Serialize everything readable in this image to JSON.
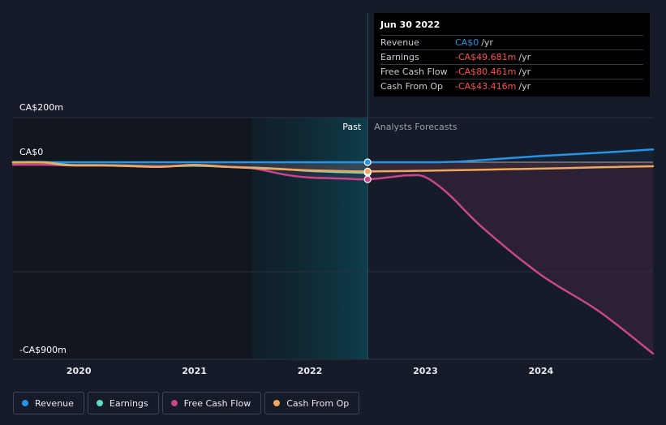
{
  "tooltip": {
    "date": "Jun 30 2022",
    "rows": [
      {
        "label": "Revenue",
        "value": "CA$0",
        "unit": "/yr",
        "color": "#2394e6"
      },
      {
        "label": "Earnings",
        "value": "-CA$49.681m",
        "unit": "/yr",
        "color": "#ff4d4d"
      },
      {
        "label": "Free Cash Flow",
        "value": "-CA$80.461m",
        "unit": "/yr",
        "color": "#ff4d4d"
      },
      {
        "label": "Cash From Op",
        "value": "-CA$43.416m",
        "unit": "/yr",
        "color": "#ff4d4d"
      }
    ]
  },
  "legend": [
    {
      "label": "Revenue",
      "color": "#2394e6"
    },
    {
      "label": "Earnings",
      "color": "#5ee0c0"
    },
    {
      "label": "Free Cash Flow",
      "color": "#c7468c"
    },
    {
      "label": "Cash From Op",
      "color": "#f0a860"
    }
  ],
  "chart_data": {
    "type": "line",
    "title": "",
    "y_ticks": [
      "CA$200m",
      "CA$0",
      "-CA$900m"
    ],
    "y_tick_values": [
      200,
      0,
      -900
    ],
    "ylim": [
      -900,
      200
    ],
    "xlim": [
      2019.43,
      2024.97
    ],
    "x_ticks": [
      2020,
      2021,
      2022,
      2023,
      2024
    ],
    "x_tick_labels": [
      "2020",
      "2021",
      "2022",
      "2023",
      "2024"
    ],
    "past_label": "Past",
    "forecast_label": "Analysts Forecasts",
    "highlight_range": [
      2021.5,
      2022.5
    ],
    "cursor_x": 2022.5,
    "series": [
      {
        "name": "Revenue",
        "color": "#2394e6",
        "points": [
          [
            2019.43,
            0
          ],
          [
            2020,
            0
          ],
          [
            2021,
            0
          ],
          [
            2022,
            0
          ],
          [
            2022.5,
            0
          ],
          [
            2023,
            0
          ],
          [
            2023.3,
            3
          ],
          [
            2023.6,
            14
          ],
          [
            2024,
            28
          ],
          [
            2024.5,
            42
          ],
          [
            2024.97,
            57
          ]
        ]
      },
      {
        "name": "Earnings",
        "color": "#5ee0c0",
        "points": [
          [
            2019.43,
            0
          ],
          [
            2019.7,
            0
          ],
          [
            2019.9,
            -12
          ],
          [
            2020.3,
            -14
          ],
          [
            2020.7,
            -19
          ],
          [
            2021,
            -16
          ],
          [
            2021.3,
            -22
          ],
          [
            2021.5,
            -25
          ],
          [
            2021.8,
            -33
          ],
          [
            2022,
            -41
          ],
          [
            2022.3,
            -47
          ],
          [
            2022.5,
            -49.7
          ]
        ]
      },
      {
        "name": "Free Cash Flow",
        "color": "#c7468c",
        "points": [
          [
            2019.43,
            -12
          ],
          [
            2019.7,
            -12
          ],
          [
            2019.9,
            -14
          ],
          [
            2020.3,
            -16
          ],
          [
            2020.7,
            -20
          ],
          [
            2021,
            -13
          ],
          [
            2021.3,
            -22
          ],
          [
            2021.5,
            -28
          ],
          [
            2021.8,
            -60
          ],
          [
            2022,
            -72
          ],
          [
            2022.3,
            -77
          ],
          [
            2022.5,
            -80.5
          ],
          [
            2022.7,
            -70
          ],
          [
            2022.85,
            -62
          ],
          [
            2023,
            -70
          ],
          [
            2023.2,
            -150
          ],
          [
            2023.5,
            -310
          ],
          [
            2024,
            -530
          ],
          [
            2024.5,
            -700
          ],
          [
            2024.97,
            -900
          ]
        ]
      },
      {
        "name": "Cash From Op",
        "color": "#f0a860",
        "points": [
          [
            2019.43,
            -2
          ],
          [
            2019.7,
            -2
          ],
          [
            2019.9,
            -14
          ],
          [
            2020.3,
            -16
          ],
          [
            2020.7,
            -22
          ],
          [
            2021,
            -13
          ],
          [
            2021.3,
            -22
          ],
          [
            2021.5,
            -27
          ],
          [
            2021.8,
            -34
          ],
          [
            2022,
            -38
          ],
          [
            2022.3,
            -42
          ],
          [
            2022.5,
            -43.4
          ],
          [
            2023,
            -40
          ],
          [
            2023.5,
            -35
          ],
          [
            2024,
            -30
          ],
          [
            2024.5,
            -24
          ],
          [
            2024.97,
            -19
          ]
        ]
      }
    ]
  }
}
